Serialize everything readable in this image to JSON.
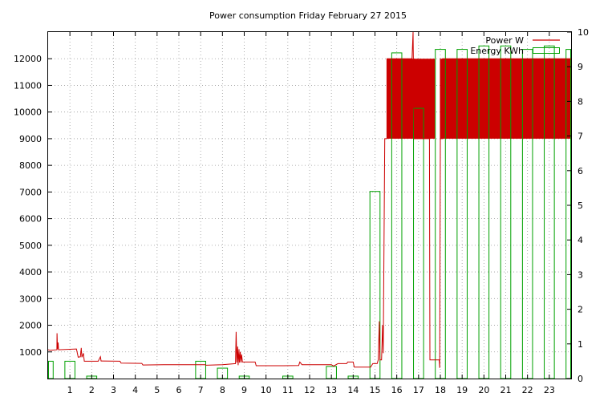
{
  "chart_data": {
    "type": "bar",
    "title": "Power consumption Friday February 27 2015",
    "xlabel": "",
    "ylabel": "",
    "xlim": [
      0,
      24
    ],
    "ylim": [
      0,
      13000
    ],
    "y2lim": [
      0,
      10
    ],
    "x_ticks": [
      1,
      2,
      3,
      4,
      5,
      6,
      7,
      8,
      9,
      10,
      11,
      12,
      13,
      14,
      15,
      16,
      17,
      18,
      19,
      20,
      21,
      22,
      23
    ],
    "y_ticks": [
      1000,
      2000,
      3000,
      4000,
      5000,
      6000,
      7000,
      8000,
      9000,
      10000,
      11000,
      12000
    ],
    "y2_ticks": [
      0,
      1,
      2,
      3,
      4,
      5,
      6,
      7,
      8,
      9,
      10
    ],
    "grid": true,
    "legend_position": "top-right",
    "series": [
      {
        "name": "Power W",
        "type": "line",
        "axis": "left",
        "color": "#cc0000",
        "points": [
          [
            0.0,
            1080
          ],
          [
            0.1,
            1060
          ],
          [
            0.4,
            1080
          ],
          [
            0.41,
            1700
          ],
          [
            0.43,
            1100
          ],
          [
            0.46,
            1350
          ],
          [
            0.48,
            1080
          ],
          [
            1.3,
            1110
          ],
          [
            1.38,
            800
          ],
          [
            1.48,
            820
          ],
          [
            1.52,
            1150
          ],
          [
            1.55,
            800
          ],
          [
            1.62,
            950
          ],
          [
            1.66,
            650
          ],
          [
            2.3,
            650
          ],
          [
            2.4,
            820
          ],
          [
            2.43,
            660
          ],
          [
            3.3,
            650
          ],
          [
            3.35,
            580
          ],
          [
            4.3,
            570
          ],
          [
            4.35,
            510
          ],
          [
            5.3,
            520
          ],
          [
            7.2,
            520
          ],
          [
            7.25,
            500
          ],
          [
            8.0,
            520
          ],
          [
            8.6,
            560
          ],
          [
            8.63,
            1750
          ],
          [
            8.66,
            600
          ],
          [
            8.7,
            1200
          ],
          [
            8.72,
            500
          ],
          [
            8.76,
            1100
          ],
          [
            8.78,
            600
          ],
          [
            8.82,
            1000
          ],
          [
            8.85,
            600
          ],
          [
            8.88,
            900
          ],
          [
            8.92,
            620
          ],
          [
            9.5,
            620
          ],
          [
            9.55,
            480
          ],
          [
            10.8,
            480
          ],
          [
            11.5,
            490
          ],
          [
            11.55,
            620
          ],
          [
            11.65,
            520
          ],
          [
            13.0,
            520
          ],
          [
            13.1,
            470
          ],
          [
            13.3,
            560
          ],
          [
            13.7,
            560
          ],
          [
            13.75,
            620
          ],
          [
            14.0,
            620
          ],
          [
            14.05,
            430
          ],
          [
            14.8,
            430
          ],
          [
            14.9,
            560
          ],
          [
            15.1,
            560
          ],
          [
            15.15,
            700
          ],
          [
            15.2,
            2150
          ],
          [
            15.23,
            700
          ],
          [
            15.3,
            700
          ],
          [
            15.35,
            2000
          ],
          [
            15.38,
            950
          ],
          [
            15.45,
            9000
          ],
          [
            15.55,
            9000
          ],
          [
            15.55,
            12000
          ],
          [
            16.7,
            12000
          ],
          [
            16.75,
            13500
          ],
          [
            16.8,
            9000
          ],
          [
            17.5,
            9000
          ],
          [
            17.52,
            700
          ],
          [
            17.95,
            700
          ],
          [
            17.97,
            400
          ],
          [
            18.0,
            9000
          ],
          [
            18.1,
            9000
          ],
          [
            18.1,
            12000
          ],
          [
            24.0,
            12000
          ]
        ]
      },
      {
        "name": "Energy KWh",
        "type": "bar",
        "axis": "right",
        "color": "#00a000",
        "bars": [
          [
            0,
            0.5
          ],
          [
            1,
            0.5
          ],
          [
            2,
            0.07
          ],
          [
            7,
            0.5
          ],
          [
            8,
            0.3
          ],
          [
            9,
            0.07
          ],
          [
            11,
            0.07
          ],
          [
            13,
            0.35
          ],
          [
            14,
            0.07
          ],
          [
            15,
            5.4
          ],
          [
            16,
            9.4
          ],
          [
            17,
            7.8
          ],
          [
            18,
            9.5
          ],
          [
            19,
            9.5
          ],
          [
            20,
            9.6
          ],
          [
            21,
            9.6
          ],
          [
            22,
            9.5
          ],
          [
            23,
            9.6
          ],
          [
            24,
            9.5
          ]
        ]
      }
    ]
  }
}
